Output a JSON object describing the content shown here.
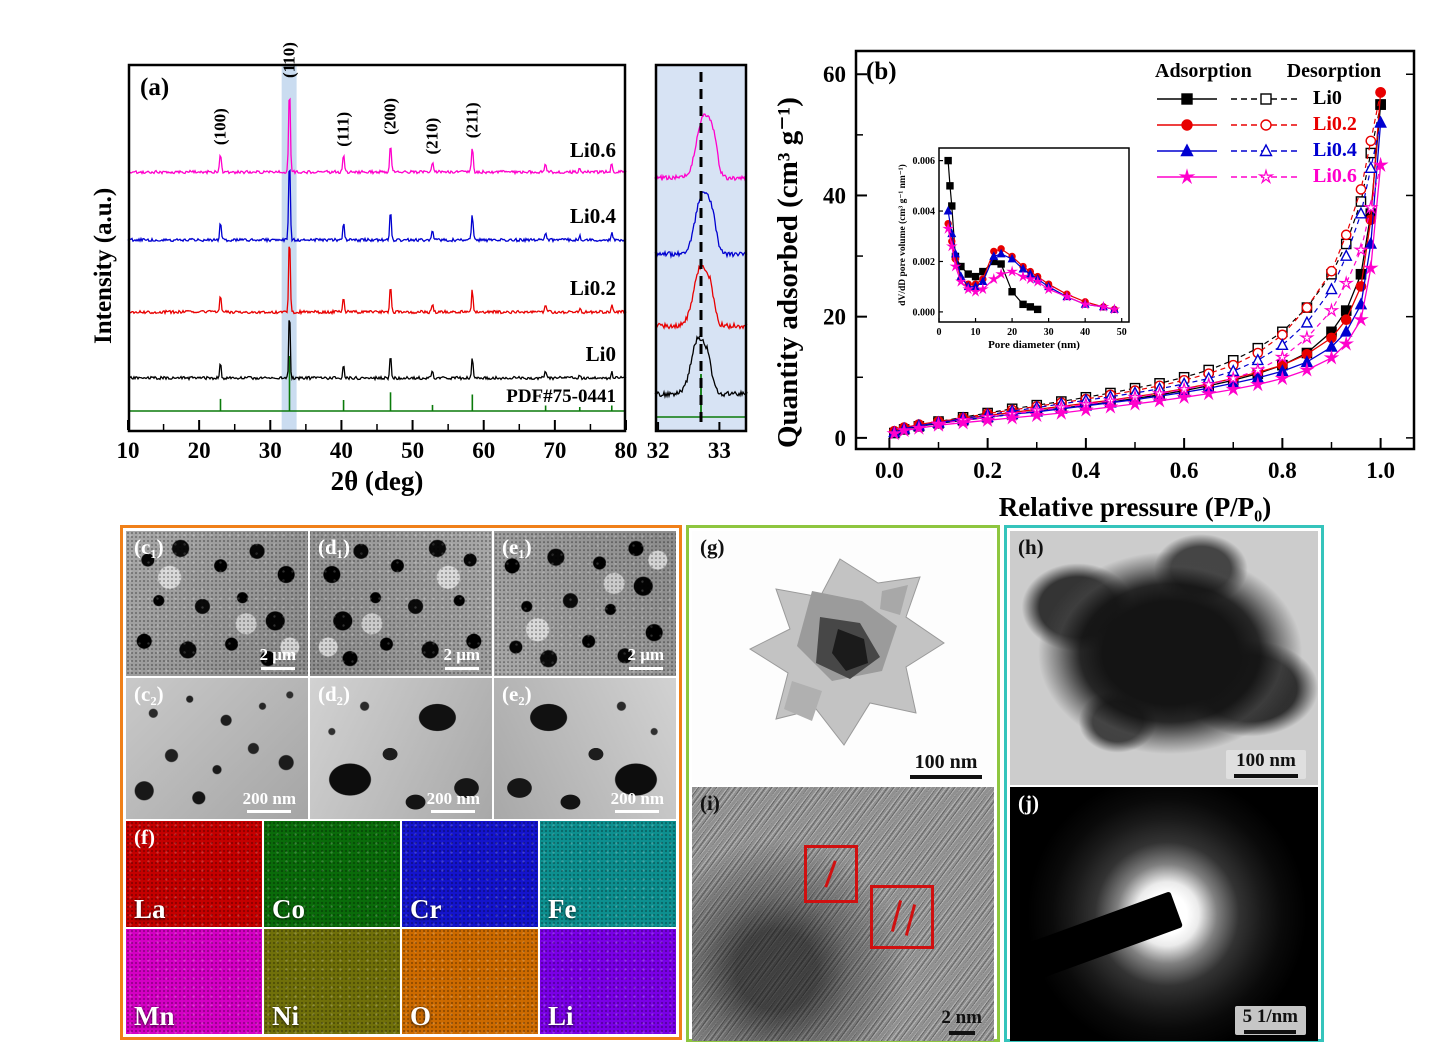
{
  "panel_a": {
    "label": "(a)",
    "ylabel": "Intensity (a.u.)",
    "xlabel": "2θ (deg)"
  },
  "panel_b": {
    "label": "(b)",
    "ylabel": "Quantity adsorbed (cm³ g⁻¹)",
    "xlabel": "Relative pressure (P/P₀)",
    "legend": {
      "header": "Adsorption Desorption",
      "items": [
        {
          "label": "Li0",
          "color": "#000000"
        },
        {
          "label": "Li0.2",
          "color": "#e80000"
        },
        {
          "label": "Li0.4",
          "color": "#0000d0"
        },
        {
          "label": "Li0.6",
          "color": "#ff00cc"
        }
      ]
    }
  },
  "micrographs": {
    "sem": [
      {
        "label": "(c₁)",
        "scale": "2 μm"
      },
      {
        "label": "(d₁)",
        "scale": "2 μm"
      },
      {
        "label": "(e₁)",
        "scale": "2 μm"
      },
      {
        "label": "(c₂)",
        "scale": "200 nm"
      },
      {
        "label": "(d₂)",
        "scale": "200 nm"
      },
      {
        "label": "(e₂)",
        "scale": "200 nm"
      }
    ],
    "eds_label": "(f)",
    "eds": [
      {
        "name": "La",
        "color": "#c40000"
      },
      {
        "name": "Co",
        "color": "#0a6b0a"
      },
      {
        "name": "Cr",
        "color": "#1414cc"
      },
      {
        "name": "Fe",
        "color": "#0d8f8f"
      },
      {
        "name": "Mn",
        "color": "#d400c4"
      },
      {
        "name": "Ni",
        "color": "#70700a"
      },
      {
        "name": "O",
        "color": "#cc6a00"
      },
      {
        "name": "Li",
        "color": "#7a00e6"
      }
    ],
    "tem": [
      {
        "label": "(g)",
        "scale": "100 nm"
      },
      {
        "label": "(h)",
        "scale": "100 nm"
      },
      {
        "label": "(i)",
        "scale": "2 nm"
      },
      {
        "label": "(j)",
        "scale": "5 1/nm"
      }
    ]
  },
  "chart_data": [
    {
      "id": "xrd",
      "type": "line",
      "xlabel": "2θ (deg)",
      "ylabel": "Intensity (a.u.)",
      "xlim": [
        10,
        80
      ],
      "x_ticks": [
        10,
        20,
        30,
        40,
        50,
        60,
        70,
        80
      ],
      "highlight_band": [
        31.6,
        33.7
      ],
      "peaks": [
        {
          "two_theta": 23.0,
          "label": "(100)",
          "rel": 0.22
        },
        {
          "two_theta": 32.7,
          "label": "(110)",
          "rel": 1.0
        },
        {
          "two_theta": 40.3,
          "label": "(111)",
          "rel": 0.2
        },
        {
          "two_theta": 46.9,
          "label": "(200)",
          "rel": 0.34
        },
        {
          "two_theta": 52.8,
          "label": "(210)",
          "rel": 0.11
        },
        {
          "two_theta": 58.4,
          "label": "(211)",
          "rel": 0.3
        },
        {
          "two_theta": 68.7,
          "label": "",
          "rel": 0.1
        },
        {
          "two_theta": 73.5,
          "label": "",
          "rel": 0.05
        },
        {
          "two_theta": 78.0,
          "label": "",
          "rel": 0.1
        }
      ],
      "series": [
        {
          "name": "Li0",
          "color": "#000000"
        },
        {
          "name": "Li0.2",
          "color": "#e80000"
        },
        {
          "name": "Li0.4",
          "color": "#0000d0"
        },
        {
          "name": "Li0.6",
          "color": "#ff00cc"
        }
      ],
      "reference": {
        "name": "PDF#75-0441",
        "color": "#0a7a0a"
      }
    },
    {
      "id": "xrd_zoom",
      "type": "line",
      "xlim": [
        31.95,
        33.45
      ],
      "x_ticks": [
        32,
        33
      ],
      "dashed_line_x": 32.7,
      "peak_centers": [
        32.66,
        32.7,
        32.73,
        32.75
      ],
      "series": [
        {
          "name": "Li0",
          "color": "#000000"
        },
        {
          "name": "Li0.2",
          "color": "#e80000"
        },
        {
          "name": "Li0.4",
          "color": "#0000d0"
        },
        {
          "name": "Li0.6",
          "color": "#ff00cc"
        }
      ]
    },
    {
      "id": "isotherm",
      "type": "scatter",
      "xlabel": "Relative pressure (P/P₀)",
      "ylabel": "Quantity adsorbed (cm³ g⁻¹)",
      "xlim": [
        -0.05,
        1.05
      ],
      "ylim": [
        0,
        62
      ],
      "x_ticks": [
        0.0,
        0.2,
        0.4,
        0.6,
        0.8,
        1.0
      ],
      "y_ticks": [
        0,
        20,
        40,
        60
      ],
      "series": [
        {
          "name": "Li0",
          "color": "#000000",
          "marker": "square",
          "adsorption": {
            "x": [
              0.01,
              0.03,
              0.06,
              0.1,
              0.15,
              0.2,
              0.25,
              0.3,
              0.35,
              0.4,
              0.45,
              0.5,
              0.55,
              0.6,
              0.65,
              0.7,
              0.75,
              0.8,
              0.85,
              0.9,
              0.93,
              0.96,
              0.98,
              1.0
            ],
            "y": [
              0.8,
              1.4,
              1.9,
              2.4,
              2.9,
              3.4,
              3.9,
              4.4,
              4.9,
              5.4,
              5.9,
              6.5,
              7.1,
              7.8,
              8.6,
              9.5,
              10.6,
              12.0,
              14.0,
              17.5,
              21.0,
              27.0,
              37.0,
              55.0
            ]
          },
          "desorption": {
            "x": [
              1.0,
              0.98,
              0.96,
              0.93,
              0.9,
              0.85,
              0.8,
              0.75,
              0.7,
              0.65,
              0.6,
              0.55,
              0.5,
              0.45,
              0.4,
              0.35,
              0.3,
              0.25,
              0.2,
              0.15,
              0.1
            ],
            "y": [
              55.0,
              47.0,
              39.0,
              32.0,
              27.0,
              21.5,
              17.5,
              14.8,
              12.8,
              11.2,
              10.0,
              9.0,
              8.2,
              7.4,
              6.7,
              6.0,
              5.4,
              4.8,
              4.1,
              3.4,
              2.7
            ]
          }
        },
        {
          "name": "Li0.2",
          "color": "#e80000",
          "marker": "circle",
          "adsorption": {
            "x": [
              0.01,
              0.03,
              0.06,
              0.1,
              0.15,
              0.2,
              0.25,
              0.3,
              0.35,
              0.4,
              0.45,
              0.5,
              0.55,
              0.6,
              0.65,
              0.7,
              0.75,
              0.8,
              0.85,
              0.9,
              0.93,
              0.96,
              0.98,
              1.0
            ],
            "y": [
              1.1,
              1.7,
              2.2,
              2.7,
              3.2,
              3.7,
              4.2,
              4.7,
              5.2,
              5.7,
              6.2,
              6.8,
              7.4,
              8.1,
              8.9,
              9.8,
              10.8,
              12.0,
              13.8,
              16.5,
              19.5,
              25.0,
              36.0,
              57.0
            ]
          },
          "desorption": {
            "x": [
              1.0,
              0.98,
              0.96,
              0.93,
              0.9,
              0.85,
              0.8,
              0.75,
              0.7,
              0.65,
              0.6,
              0.55,
              0.5,
              0.45,
              0.4,
              0.35,
              0.3,
              0.25,
              0.2,
              0.15,
              0.1
            ],
            "y": [
              57.0,
              49.0,
              41.0,
              33.5,
              27.5,
              21.5,
              17.0,
              14.0,
              12.0,
              10.6,
              9.5,
              8.6,
              7.8,
              7.1,
              6.4,
              5.8,
              5.2,
              4.6,
              4.0,
              3.3,
              2.6
            ]
          }
        },
        {
          "name": "Li0.4",
          "color": "#0000d0",
          "marker": "triangle",
          "adsorption": {
            "x": [
              0.01,
              0.03,
              0.06,
              0.1,
              0.15,
              0.2,
              0.25,
              0.3,
              0.35,
              0.4,
              0.45,
              0.5,
              0.55,
              0.6,
              0.65,
              0.7,
              0.75,
              0.8,
              0.85,
              0.9,
              0.93,
              0.96,
              0.98,
              1.0
            ],
            "y": [
              0.9,
              1.5,
              2.0,
              2.5,
              3.0,
              3.4,
              3.9,
              4.3,
              4.8,
              5.3,
              5.8,
              6.3,
              6.9,
              7.5,
              8.2,
              9.0,
              9.9,
              11.0,
              12.5,
              15.0,
              17.5,
              22.0,
              32.0,
              52.0
            ]
          },
          "desorption": {
            "x": [
              1.0,
              0.98,
              0.96,
              0.93,
              0.9,
              0.85,
              0.8,
              0.75,
              0.7,
              0.65,
              0.6,
              0.55,
              0.5,
              0.45,
              0.4,
              0.35,
              0.3,
              0.25,
              0.2,
              0.15,
              0.1
            ],
            "y": [
              52.0,
              44.5,
              37.0,
              30.0,
              24.5,
              19.0,
              15.3,
              12.8,
              11.0,
              9.8,
              8.9,
              8.1,
              7.4,
              6.8,
              6.2,
              5.6,
              5.0,
              4.4,
              3.8,
              3.2,
              2.5
            ]
          }
        },
        {
          "name": "Li0.6",
          "color": "#ff00cc",
          "marker": "star",
          "adsorption": {
            "x": [
              0.01,
              0.03,
              0.06,
              0.1,
              0.15,
              0.2,
              0.25,
              0.3,
              0.35,
              0.4,
              0.45,
              0.5,
              0.55,
              0.6,
              0.65,
              0.7,
              0.75,
              0.8,
              0.85,
              0.9,
              0.93,
              0.96,
              0.98,
              1.0
            ],
            "y": [
              0.7,
              1.2,
              1.6,
              2.1,
              2.5,
              2.9,
              3.3,
              3.7,
              4.1,
              4.6,
              5.1,
              5.6,
              6.1,
              6.7,
              7.3,
              8.0,
              8.8,
              9.8,
              11.2,
              13.2,
              15.5,
              19.5,
              28.0,
              45.0
            ]
          },
          "desorption": {
            "x": [
              1.0,
              0.98,
              0.96,
              0.93,
              0.9,
              0.85,
              0.8,
              0.75,
              0.7,
              0.65,
              0.6,
              0.55,
              0.5,
              0.45,
              0.4,
              0.35,
              0.3,
              0.25,
              0.2,
              0.15,
              0.1
            ],
            "y": [
              45.0,
              38.0,
              31.0,
              25.5,
              21.0,
              16.5,
              13.3,
              11.2,
              9.8,
              8.8,
              8.0,
              7.3,
              6.7,
              6.1,
              5.5,
              5.0,
              4.5,
              3.9,
              3.4,
              2.9,
              2.3
            ]
          }
        }
      ]
    },
    {
      "id": "pore_distribution",
      "type": "line",
      "xlabel": "Pore diameter (nm)",
      "ylabel": "dV/dD pore volume (cm³ g⁻¹ nm⁻¹)",
      "x_ticks": [
        0,
        10,
        20,
        30,
        40,
        50
      ],
      "y_ticks": [
        0,
        0.002,
        0.004,
        0.006
      ],
      "series": [
        {
          "name": "Li0",
          "color": "#000000",
          "marker": "square",
          "x": [
            2.5,
            3,
            3.5,
            4.5,
            6,
            8,
            10,
            12,
            15,
            17,
            20,
            23,
            25,
            27
          ],
          "y": [
            0.006,
            0.005,
            0.0042,
            0.0022,
            0.0018,
            0.0015,
            0.0014,
            0.0016,
            0.002,
            0.0019,
            0.0008,
            0.0003,
            0.0002,
            0.0001
          ]
        },
        {
          "name": "Li0.2",
          "color": "#e80000",
          "marker": "circle",
          "x": [
            2.5,
            3.5,
            4.5,
            6,
            8,
            10,
            12,
            15,
            17,
            20,
            23,
            25,
            27,
            30,
            35,
            40,
            45,
            48
          ],
          "y": [
            0.0035,
            0.0028,
            0.0021,
            0.0013,
            0.0011,
            0.0011,
            0.0013,
            0.0024,
            0.0025,
            0.0022,
            0.0018,
            0.0016,
            0.0014,
            0.0011,
            0.0007,
            0.0004,
            0.0002,
            0.0001
          ]
        },
        {
          "name": "Li0.4",
          "color": "#0000d0",
          "marker": "triangle",
          "x": [
            2.5,
            3.5,
            4.5,
            6,
            8,
            10,
            12,
            15,
            17,
            20,
            23,
            25,
            27,
            30,
            35,
            40,
            45,
            48
          ],
          "y": [
            0.004,
            0.0031,
            0.0023,
            0.0014,
            0.001,
            0.001,
            0.0012,
            0.0022,
            0.0023,
            0.0021,
            0.0017,
            0.0015,
            0.0013,
            0.001,
            0.0006,
            0.0003,
            0.0002,
            0.0001
          ]
        },
        {
          "name": "Li0.6",
          "color": "#ff00cc",
          "marker": "star",
          "x": [
            2.5,
            3.5,
            4.5,
            6,
            8,
            10,
            12,
            15,
            17,
            20,
            23,
            25,
            27,
            30,
            35,
            40,
            45,
            48
          ],
          "y": [
            0.0033,
            0.0026,
            0.0018,
            0.0012,
            0.0009,
            0.0008,
            0.0009,
            0.0013,
            0.0015,
            0.0016,
            0.0014,
            0.0013,
            0.0012,
            0.0009,
            0.0006,
            0.0003,
            0.0002,
            0.0001
          ]
        }
      ]
    }
  ]
}
